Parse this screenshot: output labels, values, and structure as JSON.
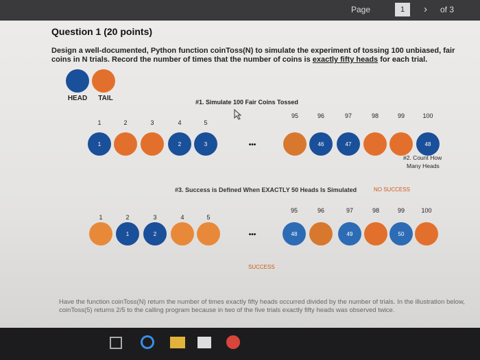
{
  "toolbar": {
    "page_label": "Page",
    "page_number": "1",
    "page_count": "of 3"
  },
  "document": {
    "title": "Question 1 (20 points)",
    "description": [
      "Design a well-documented, Python function coinToss(N) to simulate the experiment of tossing 100 unbiased, fair coins in N trials. Record the number of times that the number of coins is ",
      "exactly fifty heads",
      " for each trial."
    ],
    "legend": [
      "HEAD",
      "TAIL"
    ],
    "step1": "#1. Simulate 100 Fair Coins Tossed",
    "step2": [
      "#2. Count How",
      "Many Heads"
    ],
    "step3": "#3. Success is Defined When EXACTLY 50 Heads Is Simulated",
    "ellipsis": "•••",
    "rows": [
      {
        "indices": [
          1,
          2,
          3,
          4,
          5,
          95,
          96,
          97,
          98,
          99,
          100
        ],
        "coins": [
          {
            "color": "#1a4f9a",
            "label": "1"
          },
          {
            "color": "#e2702c",
            "label": null
          },
          {
            "color": "#e2702c",
            "label": null
          },
          {
            "color": "#1a4f9a",
            "label": "2"
          },
          {
            "color": "#1a4f9a",
            "label": "3"
          },
          {
            "color": "#d8782e",
            "label": null
          },
          {
            "color": "#1a4f9a",
            "label": "46"
          },
          {
            "color": "#1a4f9a",
            "label": "47"
          },
          {
            "color": "#e2702c",
            "label": null
          },
          {
            "color": "#e2702c",
            "label": null
          },
          {
            "color": "#1a4f9a",
            "label": "48"
          }
        ],
        "result": "NO SUCCESS"
      },
      {
        "indices": [
          1,
          2,
          3,
          4,
          5,
          95,
          96,
          97,
          98,
          99,
          100
        ],
        "coins": [
          {
            "color": "#e8893a",
            "label": null
          },
          {
            "color": "#1a4f9a",
            "label": "1"
          },
          {
            "color": "#1a4f9a",
            "label": "2"
          },
          {
            "color": "#e8893a",
            "label": null
          },
          {
            "color": "#e8893a",
            "label": null
          },
          {
            "color": "#2d6cb5",
            "label": "48"
          },
          {
            "color": "#d8782e",
            "label": null
          },
          {
            "color": "#2d6cb5",
            "label": "49"
          },
          {
            "color": "#e2702c",
            "label": null
          },
          {
            "color": "#2d6cb5",
            "label": "50"
          },
          {
            "color": "#e2702c",
            "label": null
          }
        ],
        "result": "SUCCESS"
      }
    ],
    "instructions": "Have the function coinToss(N) return the number of times exactly fifty heads occurred divided by the number of trials. In the illustration below, coinToss(5) returns 2/5 to the calling program because in two of the five trials exactly fifty heads was observed twice."
  }
}
